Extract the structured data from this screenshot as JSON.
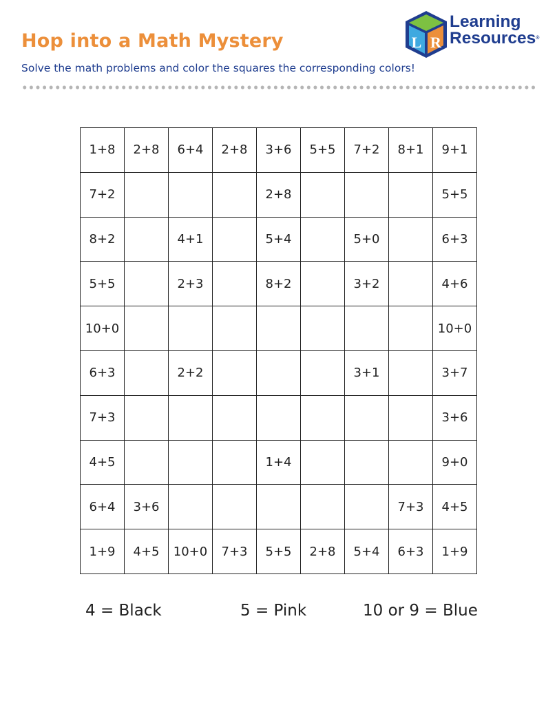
{
  "header": {
    "title": "Hop into a Math Mystery",
    "subtitle": "Solve the math problems and color the squares the corresponding colors!"
  },
  "logo": {
    "line1": "Learning",
    "line2": "Resources",
    "mark": "®",
    "letters": "LR"
  },
  "grid": [
    [
      "1+8",
      "2+8",
      "6+4",
      "2+8",
      "3+6",
      "5+5",
      "7+2",
      "8+1",
      "9+1"
    ],
    [
      "7+2",
      "",
      "",
      "",
      "2+8",
      "",
      "",
      "",
      "5+5"
    ],
    [
      "8+2",
      "",
      "4+1",
      "",
      "5+4",
      "",
      "5+0",
      "",
      "6+3"
    ],
    [
      "5+5",
      "",
      "2+3",
      "",
      "8+2",
      "",
      "3+2",
      "",
      "4+6"
    ],
    [
      "10+0",
      "",
      "",
      "",
      "",
      "",
      "",
      "",
      "10+0"
    ],
    [
      "6+3",
      "",
      "2+2",
      "",
      "",
      "",
      "3+1",
      "",
      "3+7"
    ],
    [
      "7+3",
      "",
      "",
      "",
      "",
      "",
      "",
      "",
      "3+6"
    ],
    [
      "4+5",
      "",
      "",
      "",
      "1+4",
      "",
      "",
      "",
      "9+0"
    ],
    [
      "6+4",
      "3+6",
      "",
      "",
      "",
      "",
      "",
      "7+3",
      "4+5"
    ],
    [
      "1+9",
      "4+5",
      "10+0",
      "7+3",
      "5+5",
      "2+8",
      "5+4",
      "6+3",
      "1+9"
    ]
  ],
  "legend": {
    "black": "4 = Black",
    "pink": "5 = Pink",
    "blue": "10 or 9 = Blue"
  },
  "colors": {
    "title": "#ec8f3a",
    "brand_blue": "#1f3d8f",
    "cube_green": "#7dc142",
    "cube_light_blue": "#3fa9e0",
    "cube_orange": "#ec8f3a"
  }
}
